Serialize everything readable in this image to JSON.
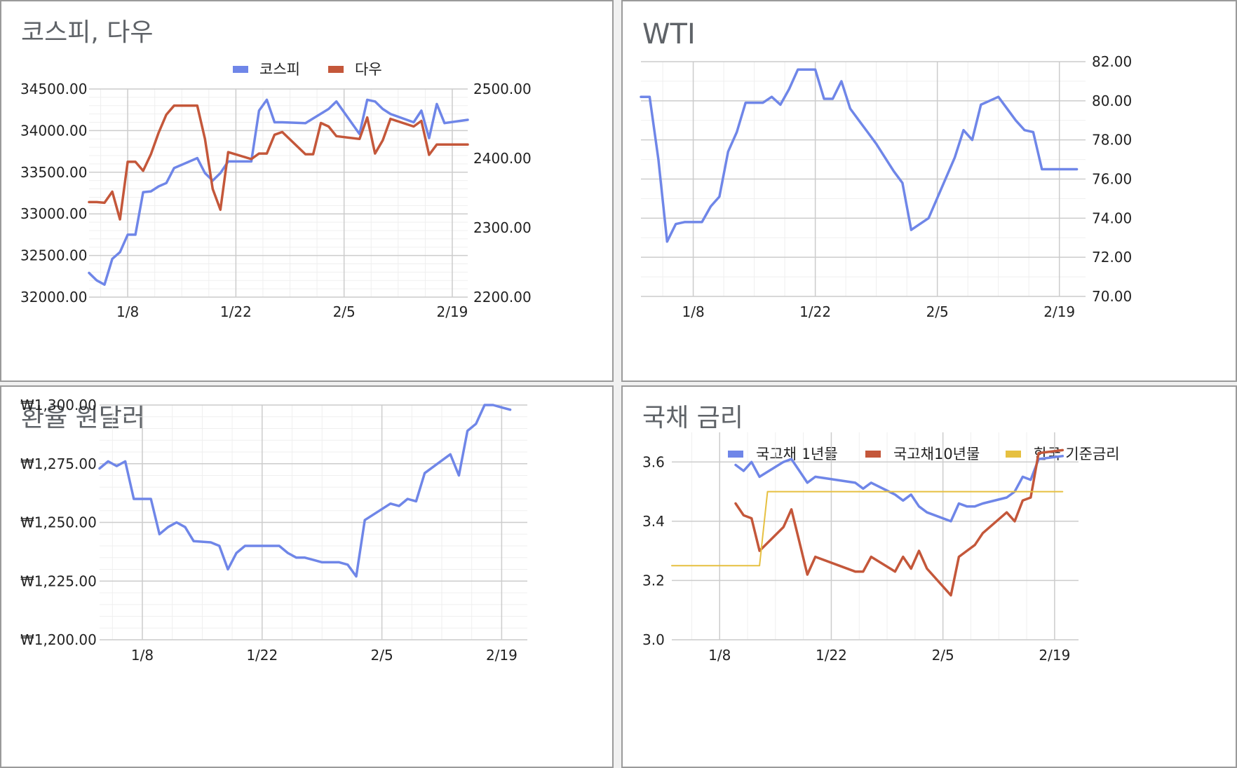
{
  "chart_data": [
    {
      "type": "line",
      "title": "코스피, 다우",
      "legend": {
        "position": "top-center"
      },
      "x_ticks": [
        "1/8",
        "1/22",
        "2/5",
        "2/19"
      ],
      "y_ticks_left": [
        "34500.00",
        "34000.00",
        "33500.00",
        "33000.00",
        "32500.00",
        "32000.00"
      ],
      "y_ticks_right": [
        "2500.00",
        "2400.00",
        "2300.00",
        "2200.00"
      ],
      "ylim_left": [
        32000,
        34500
      ],
      "ylim_right": [
        2200,
        2500
      ],
      "grid": true,
      "series": [
        {
          "name": "코스피",
          "axis": "left",
          "color": "#6f86e8",
          "x": [
            "1/3",
            "1/4",
            "1/5",
            "1/6",
            "1/7",
            "1/8",
            "1/9",
            "1/10",
            "1/11",
            "1/12",
            "1/13",
            "1/14",
            "1/17",
            "1/18",
            "1/19",
            "1/20",
            "1/21",
            "1/24",
            "1/25",
            "1/26",
            "1/27",
            "1/28",
            "1/31",
            "2/3",
            "2/4",
            "2/7",
            "2/8",
            "2/9",
            "2/10",
            "2/11",
            "2/14",
            "2/15",
            "2/16",
            "2/17",
            "2/18",
            "2/21"
          ],
          "values": [
            32290,
            32200,
            32150,
            32460,
            32540,
            32750,
            32750,
            33260,
            33270,
            33330,
            33370,
            33550,
            33670,
            33490,
            33400,
            33490,
            33630,
            33630,
            34240,
            34370,
            34100,
            34100,
            34090,
            34260,
            34350,
            33960,
            34370,
            34350,
            34260,
            34200,
            34100,
            34240,
            33910,
            34320,
            34090,
            34130
          ]
        },
        {
          "name": "다우",
          "axis": "right",
          "color": "#c4573a",
          "x": [
            "1/3",
            "1/4",
            "1/5",
            "1/6",
            "1/7",
            "1/8",
            "1/9",
            "1/10",
            "1/11",
            "1/12",
            "1/13",
            "1/14",
            "1/17",
            "1/18",
            "1/19",
            "1/20",
            "1/21",
            "1/24",
            "1/25",
            "1/26",
            "1/27",
            "1/28",
            "1/31",
            "2/1",
            "2/2",
            "2/3",
            "2/4",
            "2/7",
            "2/8",
            "2/9",
            "2/10",
            "2/11",
            "2/14",
            "2/15",
            "2/16",
            "2/17",
            "2/18",
            "2/21"
          ],
          "values": [
            2337,
            2337,
            2336,
            2352,
            2312,
            2395,
            2395,
            2382,
            2406,
            2437,
            2463,
            2476,
            2476,
            2428,
            2356,
            2326,
            2409,
            2399,
            2407,
            2407,
            2434,
            2438,
            2406,
            2406,
            2451,
            2446,
            2432,
            2428,
            2459,
            2407,
            2426,
            2457,
            2446,
            2454,
            2405,
            2420,
            2420,
            2420
          ]
        }
      ]
    },
    {
      "type": "line",
      "title": "WTI",
      "x_ticks": [
        "1/8",
        "1/22",
        "2/5",
        "2/19"
      ],
      "y_ticks_right": [
        "82.00",
        "80.00",
        "78.00",
        "76.00",
        "74.00",
        "72.00",
        "70.00"
      ],
      "ylim_right": [
        70,
        82
      ],
      "grid": true,
      "series": [
        {
          "axis": "right",
          "color": "#6f86e8",
          "x": [
            "1/2",
            "1/3",
            "1/4",
            "1/5",
            "1/6",
            "1/7",
            "1/9",
            "1/10",
            "1/11",
            "1/12",
            "1/13",
            "1/14",
            "1/15",
            "1/16",
            "1/17",
            "1/18",
            "1/19",
            "1/20",
            "1/21",
            "1/22",
            "1/23",
            "1/24",
            "1/25",
            "1/26",
            "1/27",
            "1/28",
            "1/29",
            "1/31",
            "2/1",
            "2/2",
            "2/3",
            "2/4",
            "2/7",
            "2/8",
            "2/9",
            "2/10",
            "2/11",
            "2/12",
            "2/14",
            "2/15",
            "2/16",
            "2/17",
            "2/18",
            "2/19",
            "2/21"
          ],
          "values": [
            80.2,
            80.2,
            77.0,
            72.8,
            73.7,
            73.8,
            73.8,
            74.6,
            75.1,
            77.4,
            78.4,
            79.9,
            79.9,
            79.9,
            80.2,
            79.8,
            80.6,
            81.6,
            81.6,
            81.6,
            80.1,
            80.1,
            81.0,
            79.6,
            79.0,
            78.4,
            77.8,
            76.4,
            75.8,
            73.4,
            73.7,
            74.0,
            77.1,
            78.5,
            78.0,
            79.8,
            80.0,
            80.2,
            79.0,
            78.5,
            78.4,
            76.5,
            76.5,
            76.5,
            76.5
          ]
        }
      ]
    },
    {
      "type": "line",
      "title": "환율 원달러",
      "x_ticks": [
        "1/8",
        "1/22",
        "2/5",
        "2/19"
      ],
      "y_ticks_left": [
        "₩1,300.00",
        "₩1,275.00",
        "₩1,250.00",
        "₩1,225.00",
        "₩1,200.00"
      ],
      "ylim_left": [
        1200,
        1300
      ],
      "grid": true,
      "series": [
        {
          "axis": "left",
          "color": "#6f86e8",
          "x": [
            "1/3",
            "1/4",
            "1/5",
            "1/6",
            "1/7",
            "1/9",
            "1/10",
            "1/11",
            "1/12",
            "1/13",
            "1/14",
            "1/16",
            "1/17",
            "1/18",
            "1/19",
            "1/20",
            "1/21",
            "1/24",
            "1/25",
            "1/26",
            "1/27",
            "1/28",
            "1/29",
            "1/31",
            "2/1",
            "2/2",
            "2/3",
            "2/6",
            "2/7",
            "2/8",
            "2/9",
            "2/10",
            "2/13",
            "2/14",
            "2/15",
            "2/16",
            "2/17",
            "2/18",
            "2/19",
            "2/20"
          ],
          "values": [
            1273,
            1276,
            1274,
            1276,
            1260,
            1260,
            1245,
            1248,
            1250,
            1248,
            1242,
            1241.5,
            1240,
            1230,
            1237,
            1240,
            1240,
            1240,
            1237,
            1235,
            1235,
            1234,
            1233,
            1233,
            1232,
            1227,
            1251,
            1258,
            1257,
            1260,
            1259,
            1271,
            1279,
            1270,
            1289,
            1292,
            1300,
            1300,
            1299,
            1298
          ]
        }
      ]
    },
    {
      "type": "line",
      "title": "국채 금리",
      "legend": {
        "position": "top-center"
      },
      "x_ticks": [
        "1/8",
        "1/22",
        "2/5",
        "2/19"
      ],
      "y_ticks_left": [
        "3.6",
        "3.4",
        "3.2",
        "3.0"
      ],
      "ylim_left": [
        3.0,
        3.7
      ],
      "grid": true,
      "series": [
        {
          "name": "국고채 1년물",
          "axis": "left",
          "color": "#6f86e8",
          "x": [
            "1/10",
            "1/11",
            "1/12",
            "1/13",
            "1/16",
            "1/17",
            "1/18",
            "1/19",
            "1/20",
            "1/25",
            "1/26",
            "1/27",
            "1/30",
            "1/31",
            "2/1",
            "2/2",
            "2/3",
            "2/6",
            "2/7",
            "2/8",
            "2/9",
            "2/10",
            "2/13",
            "2/14",
            "2/15",
            "2/16",
            "2/17",
            "2/20"
          ],
          "values": [
            3.59,
            3.57,
            3.6,
            3.55,
            3.6,
            3.61,
            3.57,
            3.53,
            3.55,
            3.53,
            3.51,
            3.53,
            3.49,
            3.47,
            3.49,
            3.45,
            3.43,
            3.4,
            3.46,
            3.45,
            3.45,
            3.46,
            3.48,
            3.5,
            3.55,
            3.54,
            3.61,
            3.62
          ]
        },
        {
          "name": "국고채10년물",
          "axis": "left",
          "color": "#c4573a",
          "x": [
            "1/10",
            "1/11",
            "1/12",
            "1/13",
            "1/16",
            "1/17",
            "1/18",
            "1/19",
            "1/20",
            "1/25",
            "1/26",
            "1/27",
            "1/30",
            "1/31",
            "2/1",
            "2/2",
            "2/3",
            "2/6",
            "2/7",
            "2/8",
            "2/9",
            "2/10",
            "2/13",
            "2/14",
            "2/15",
            "2/16",
            "2/17",
            "2/20"
          ],
          "values": [
            3.46,
            3.42,
            3.41,
            3.3,
            3.38,
            3.44,
            3.33,
            3.22,
            3.28,
            3.23,
            3.23,
            3.28,
            3.23,
            3.28,
            3.24,
            3.3,
            3.24,
            3.15,
            3.28,
            3.3,
            3.32,
            3.36,
            3.43,
            3.4,
            3.47,
            3.48,
            3.63,
            3.64
          ]
        },
        {
          "name": "한국 기준금리",
          "axis": "left",
          "color": "#e6c040",
          "x": [
            "1/2",
            "1/13",
            "1/14",
            "2/20"
          ],
          "values": [
            3.25,
            3.25,
            3.5,
            3.5
          ]
        }
      ]
    }
  ]
}
